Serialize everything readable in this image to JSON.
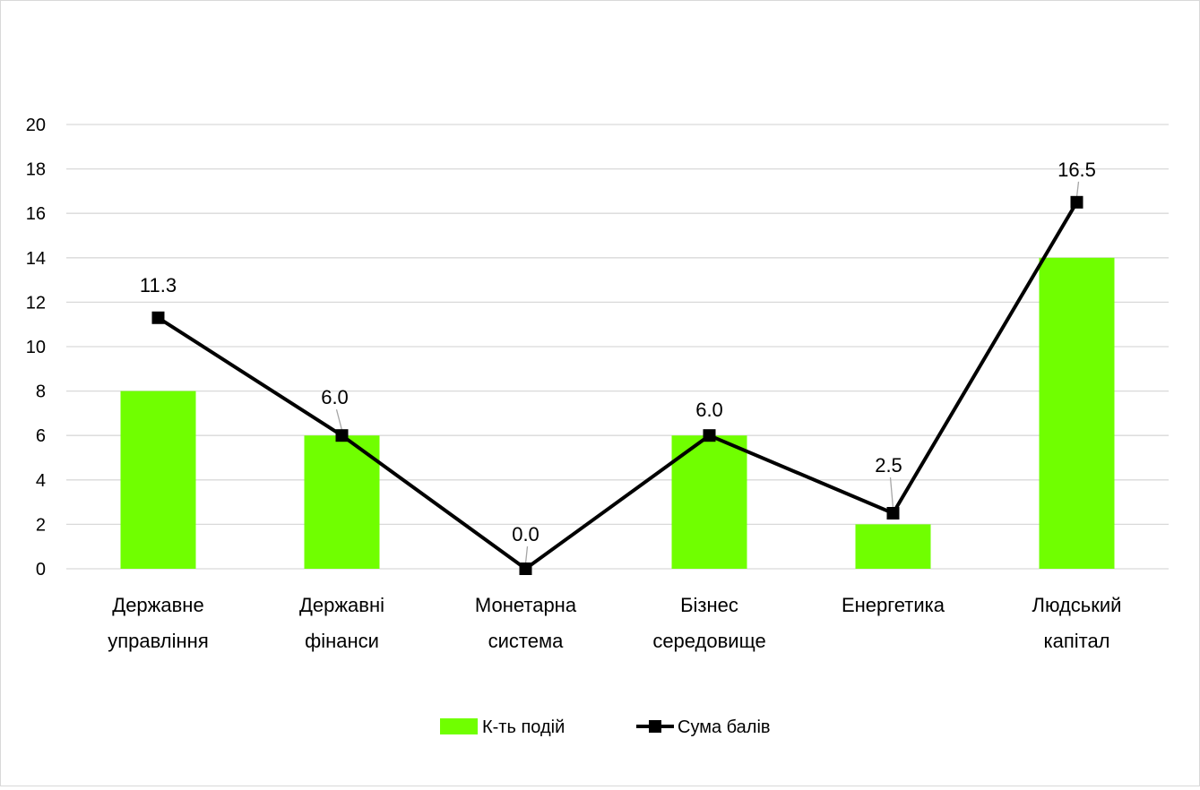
{
  "chart_data": {
    "type": "bar",
    "categories": [
      [
        "Державне",
        "управління"
      ],
      [
        "Державні",
        "фінанси"
      ],
      [
        "Монетарна",
        "система"
      ],
      [
        "Бізнес",
        "середовище"
      ],
      [
        "Енергетика"
      ],
      [
        "Людський",
        "капітал"
      ]
    ],
    "series": [
      {
        "name": "К-ть подій",
        "kind": "bar",
        "color": "#70ff00",
        "values": [
          8,
          6,
          0,
          6,
          2,
          14
        ]
      },
      {
        "name": "Сума балів",
        "kind": "line",
        "color": "#000000",
        "values": [
          11.3,
          6.0,
          0.0,
          6.0,
          2.5,
          16.5
        ],
        "data_labels": [
          "11.3",
          "6.0",
          "0.0",
          "6.0",
          "2.5",
          "16.5"
        ]
      }
    ],
    "y_ticks": [
      "0",
      "2",
      "4",
      "6",
      "8",
      "10",
      "12",
      "14",
      "16",
      "18",
      "20"
    ],
    "ylim": [
      0,
      20
    ],
    "grid": true,
    "legend_position": "bottom"
  }
}
